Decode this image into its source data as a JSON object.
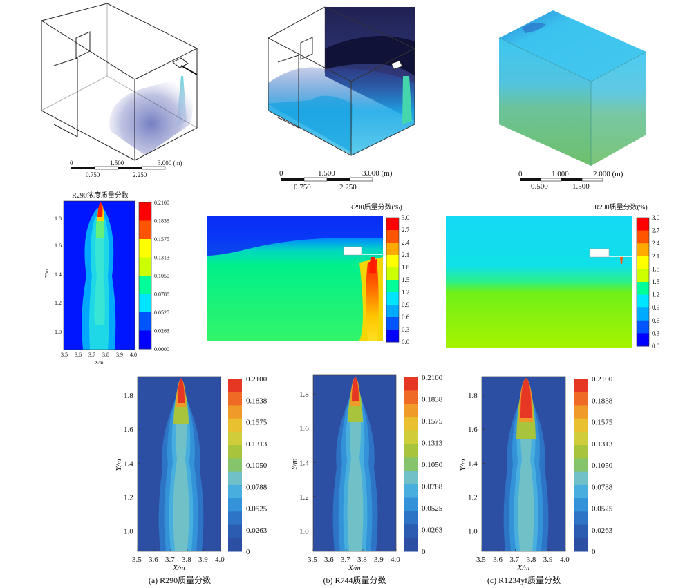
{
  "panels3d": [
    {
      "scale": {
        "labels": [
          "0",
          "1.500",
          "3.000 (m)"
        ],
        "sublabels": [
          "0.750",
          "2.250"
        ]
      }
    },
    {
      "scale": {
        "labels": [
          "0",
          "1.500",
          "3.000 (m)"
        ],
        "sublabels": [
          "0.750",
          "2.250"
        ]
      }
    },
    {
      "scale": {
        "labels": [
          "0",
          "1.000",
          "2.000 (m)"
        ],
        "sublabels": [
          "0.500",
          "1.500"
        ]
      }
    }
  ],
  "row2": {
    "left": {
      "title": "R290浓度质量分数",
      "xlabel": "X/m",
      "ylabel": "Y/m",
      "xticks": [
        "3.5",
        "3.6",
        "3.7",
        "3.8",
        "3.9",
        "4.0"
      ],
      "yticks": [
        "1.8",
        "1.6",
        "1.4",
        "1.2",
        "1.0"
      ],
      "colorbar": [
        "0.2100",
        "0.1838",
        "0.1575",
        "0.1313",
        "0.1050",
        "0.0788",
        "0.0525",
        "0.0263",
        "0.0000"
      ]
    },
    "middle": {
      "title": "R290质量分数(%)",
      "colorbar": [
        "3.0",
        "2.7",
        "2.4",
        "2.1",
        "1.8",
        "1.5",
        "1.2",
        "0.9",
        "0.6",
        "0.3",
        "0.0"
      ]
    },
    "right": {
      "title": "R290质量分数(%)",
      "colorbar": [
        "3.0",
        "2.7",
        "2.4",
        "2.1",
        "1.8",
        "1.5",
        "1.2",
        "0.9",
        "0.6",
        "0.3",
        "0.0"
      ]
    }
  },
  "row3": {
    "xticks": [
      "3.5",
      "3.6",
      "3.7",
      "3.8",
      "3.9",
      "4.0"
    ],
    "yticks": [
      "1.8",
      "1.6",
      "1.4",
      "1.2",
      "1.0"
    ],
    "xlabel": "X/m",
    "ylabel": "Y/m",
    "colorbar": [
      "0.2100",
      "0.1838",
      "0.1575",
      "0.1313",
      "0.1050",
      "0.0788",
      "0.0525",
      "0.0263",
      "0"
    ],
    "captions": [
      "(a) R290质量分数",
      "(b) R744质量分数",
      "(c) R1234yf质量分数"
    ]
  },
  "colors": {
    "jet": [
      "#0000ff",
      "#0055ff",
      "#00aaff",
      "#00e5ff",
      "#00ff99",
      "#66ff00",
      "#ccff00",
      "#ffff00",
      "#ffaa00",
      "#ff5500",
      "#ff0000"
    ],
    "row3": [
      "#2c4ea3",
      "#2a5cb2",
      "#2e74c6",
      "#3392d8",
      "#48aede",
      "#6fc0c7",
      "#86c46b",
      "#a8c43c",
      "#cfcd3a",
      "#e8c030",
      "#f09a2a",
      "#ef6a25",
      "#e63624"
    ]
  }
}
